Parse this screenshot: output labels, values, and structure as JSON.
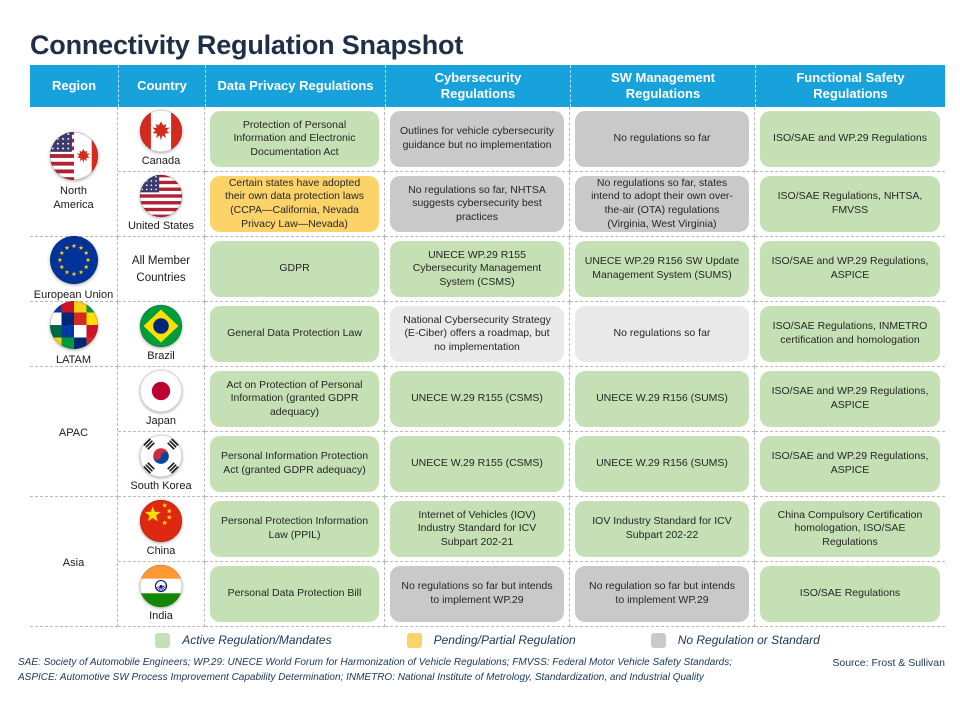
{
  "title": "Connectivity Regulation Snapshot",
  "colors": {
    "header_bg": "#17a2dc",
    "title_text": "#1e2f47",
    "note_text": "#17365d",
    "active": "#c5e0b4",
    "pending": "#fbd369",
    "none": "#c9c9c9",
    "none_light": "#e9e9e9",
    "border": "#b8b8b8"
  },
  "table": {
    "columns": [
      {
        "key": "region",
        "label": "Region"
      },
      {
        "key": "country",
        "label": "Country"
      },
      {
        "key": "privacy",
        "label": "Data Privacy Regulations"
      },
      {
        "key": "cyber",
        "label": "Cybersecurity Regulations"
      },
      {
        "key": "sw",
        "label": "SW Management Regulations"
      },
      {
        "key": "safety",
        "label": "Functional Safety Regulations"
      }
    ],
    "regions": [
      {
        "name": "North America",
        "flag": "north-america",
        "countries": [
          {
            "name": "Canada",
            "flag": "canada",
            "cells": {
              "privacy": {
                "text": "Protection of Personal Information and Electronic Documentation Act",
                "status": "active"
              },
              "cyber": {
                "text": "Outlines for vehicle cybersecurity guidance but no implementation",
                "status": "none"
              },
              "sw": {
                "text": "No regulations so far",
                "status": "none"
              },
              "safety": {
                "text": "ISO/SAE and WP.29 Regulations",
                "status": "active"
              }
            }
          },
          {
            "name": "United States",
            "flag": "united-states",
            "cells": {
              "privacy": {
                "text": "Certain states have adopted their own data protection laws (CCPA—California, Nevada Privacy Law—Nevada)",
                "status": "pending"
              },
              "cyber": {
                "text": "No regulations so far, NHTSA suggests cybersecurity best practices",
                "status": "none"
              },
              "sw": {
                "text": "No regulations so far, states intend to adopt their own over-the-air (OTA) regulations (Virginia, West Virginia)",
                "status": "none"
              },
              "safety": {
                "text": "ISO/SAE Regulations, NHTSA, FMVSS",
                "status": "active"
              }
            }
          }
        ]
      },
      {
        "name": "European Union",
        "flag": "european-union",
        "countries": [
          {
            "name": "All Member Countries",
            "flag": null,
            "cells": {
              "privacy": {
                "text": "GDPR",
                "status": "active"
              },
              "cyber": {
                "text": "UNECE WP.29 R155 Cybersecurity Management System (CSMS)",
                "status": "active"
              },
              "sw": {
                "text": "UNECE WP.29 R156 SW Update Management System (SUMS)",
                "status": "active"
              },
              "safety": {
                "text": "ISO/SAE and WP.29 Regulations, ASPICE",
                "status": "active"
              }
            }
          }
        ]
      },
      {
        "name": "LATAM",
        "flag": "latam",
        "countries": [
          {
            "name": "Brazil",
            "flag": "brazil",
            "cells": {
              "privacy": {
                "text": "General Data Protection Law",
                "status": "active"
              },
              "cyber": {
                "text": "National Cybersecurity Strategy (E-Ciber) offers a roadmap, but no implementation",
                "status": "none_light"
              },
              "sw": {
                "text": "No regulations so far",
                "status": "none_light"
              },
              "safety": {
                "text": "ISO/SAE Regulations, INMETRO certification and homologation",
                "status": "active"
              }
            }
          }
        ]
      },
      {
        "name": "APAC",
        "flag": null,
        "countries": [
          {
            "name": "Japan",
            "flag": "japan",
            "cells": {
              "privacy": {
                "text": "Act on Protection of Personal Information (granted GDPR adequacy)",
                "status": "active"
              },
              "cyber": {
                "text": "UNECE W.29 R155 (CSMS)",
                "status": "active"
              },
              "sw": {
                "text": "UNECE W.29 R156 (SUMS)",
                "status": "active"
              },
              "safety": {
                "text": "ISO/SAE and WP.29 Regulations, ASPICE",
                "status": "active"
              }
            }
          },
          {
            "name": "South Korea",
            "flag": "south-korea",
            "cells": {
              "privacy": {
                "text": "Personal Information Protection Act (granted GDPR adequacy)",
                "status": "active"
              },
              "cyber": {
                "text": "UNECE W.29 R155 (CSMS)",
                "status": "active"
              },
              "sw": {
                "text": "UNECE W.29 R156 (SUMS)",
                "status": "active"
              },
              "safety": {
                "text": "ISO/SAE and WP.29 Regulations, ASPICE",
                "status": "active"
              }
            }
          }
        ]
      },
      {
        "name": "Asia",
        "flag": null,
        "countries": [
          {
            "name": "China",
            "flag": "china",
            "cells": {
              "privacy": {
                "text": "Personal Protection Information Law (PPIL)",
                "status": "active"
              },
              "cyber": {
                "text": "Internet of Vehicles (IOV) Industry Standard for ICV Subpart 202-21",
                "status": "active"
              },
              "sw": {
                "text": "IOV Industry Standard for ICV Subpart 202-22",
                "status": "active"
              },
              "safety": {
                "text": "China Compulsory Certification homologation, ISO/SAE Regulations",
                "status": "active"
              }
            }
          },
          {
            "name": "India",
            "flag": "india",
            "cells": {
              "privacy": {
                "text": "Personal Data Protection Bill",
                "status": "active"
              },
              "cyber": {
                "text": "No regulations so far but intends to implement WP.29",
                "status": "none"
              },
              "sw": {
                "text": "No regulation so far but intends to implement WP.29",
                "status": "none"
              },
              "safety": {
                "text": "ISO/SAE Regulations",
                "status": "active"
              }
            }
          }
        ]
      }
    ]
  },
  "legend": [
    {
      "label": "Active Regulation/Mandates",
      "status": "active"
    },
    {
      "label": "Pending/Partial Regulation",
      "status": "pending"
    },
    {
      "label": "No Regulation or Standard",
      "status": "none"
    }
  ],
  "footnotes": [
    "SAE: Society of Automobile Engineers; WP.29: UNECE World Forum for Harmonization of Vehicle Regulations; FMVSS: Federal Motor Vehicle Safety Standards;",
    "ASPICE: Automotive SW Process Improvement Capability Determination; INMETRO: National Institute of Metrology, Standardization, and Industrial Quality"
  ],
  "source": "Source: Frost & Sullivan"
}
